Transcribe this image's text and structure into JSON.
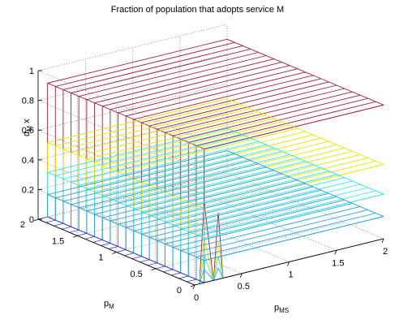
{
  "chart_data": {
    "type": "surface3d",
    "title": "Fraction of population that adopts service M",
    "zlabel_main": "α",
    "zlabel_sub": "M",
    "zlabel_suffix": "x",
    "xlabel_main": "p",
    "xlabel_sub": "MS",
    "ylabel_main": "p",
    "ylabel_sub": "M",
    "xlim": [
      0,
      2
    ],
    "ylim": [
      0,
      2
    ],
    "zlim": [
      0,
      1
    ],
    "x_ticks": [
      "0",
      "0.5",
      "1",
      "1.5",
      "2"
    ],
    "y_ticks": [
      "0",
      "0.5",
      "1",
      "1.5",
      "2"
    ],
    "z_ticks": [
      "0",
      "0.2",
      "0.4",
      "0.6",
      "0.8",
      "1"
    ],
    "grid": true,
    "x_step": 0.1,
    "y_step": 0.1,
    "series": [
      {
        "plateau": 0.9,
        "color": "#a01e3c"
      },
      {
        "plateau": 0.5,
        "color": "#e6e600"
      },
      {
        "plateau": 0.3,
        "color": "#33e6e6"
      },
      {
        "plateau": 0.15,
        "color": "#2a9fe0"
      },
      {
        "plateau": 0.0,
        "color": "#2a2ad0"
      }
    ]
  }
}
